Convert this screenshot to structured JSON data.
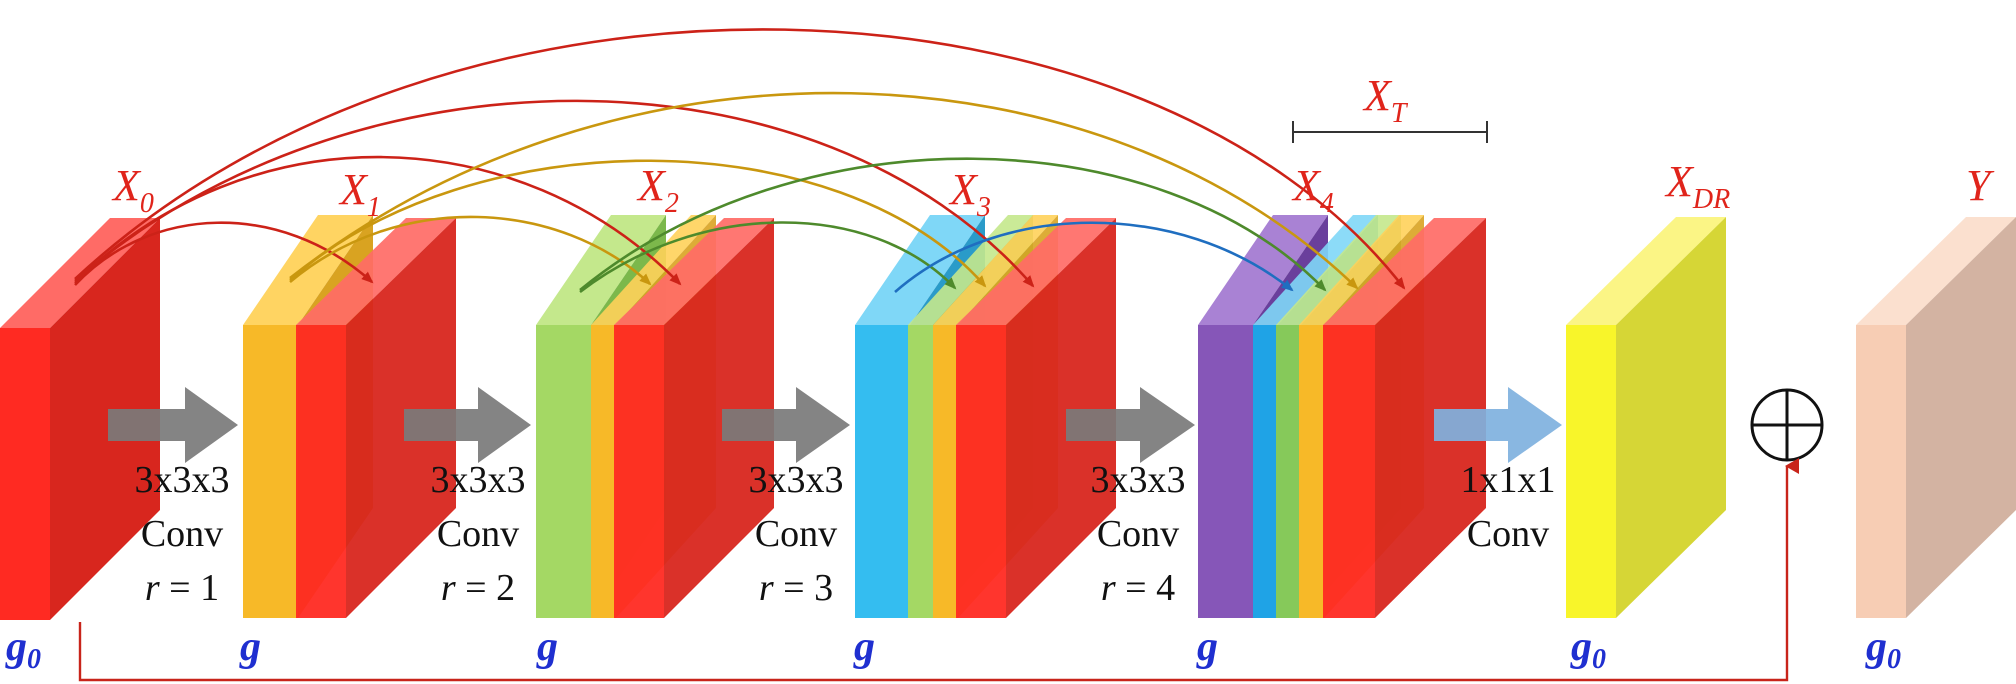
{
  "layers": {
    "x0": {
      "main": "X",
      "sub": "0"
    },
    "x1": {
      "main": "X",
      "sub": "1"
    },
    "x2": {
      "main": "X",
      "sub": "2"
    },
    "x3": {
      "main": "X",
      "sub": "3"
    },
    "x4": {
      "main": "X",
      "sub": "4"
    },
    "xt": {
      "main": "X",
      "sub": "T"
    },
    "xdr": {
      "main": "X",
      "sub": "DR"
    },
    "y": {
      "main": "Y"
    }
  },
  "growth": {
    "g0_a": {
      "main": "g",
      "sub": "0"
    },
    "g1": {
      "main": "g"
    },
    "g2": {
      "main": "g"
    },
    "g3": {
      "main": "g"
    },
    "g4": {
      "main": "g"
    },
    "g0_b": {
      "main": "g",
      "sub": "0"
    },
    "g0_c": {
      "main": "g",
      "sub": "0"
    }
  },
  "ops": {
    "op1": {
      "kernel": "3x3x3",
      "name": "Conv",
      "r_var": "r",
      "r_val": " = 1"
    },
    "op2": {
      "kernel": "3x3x3",
      "name": "Conv",
      "r_var": "r",
      "r_val": " = 2"
    },
    "op3": {
      "kernel": "3x3x3",
      "name": "Conv",
      "r_var": "r",
      "r_val": " = 3"
    },
    "op4": {
      "kernel": "3x3x3",
      "name": "Conv",
      "r_var": "r",
      "r_val": " = 4"
    },
    "op5": {
      "kernel": "1x1x1",
      "name": "Conv"
    }
  },
  "colors": {
    "red": "#f2231b",
    "orange": "#f5b21d",
    "green": "#93cf55",
    "cyan": "#2cb4ea",
    "purple": "#7e4fb0",
    "yellow": "#f6ef25",
    "peach": "#f5cbb0",
    "arrow_gray": "#7a7a7a",
    "arrow_blue": "#7fb1de",
    "label_red": "#e0241b",
    "label_blue": "#1f2fd0"
  }
}
